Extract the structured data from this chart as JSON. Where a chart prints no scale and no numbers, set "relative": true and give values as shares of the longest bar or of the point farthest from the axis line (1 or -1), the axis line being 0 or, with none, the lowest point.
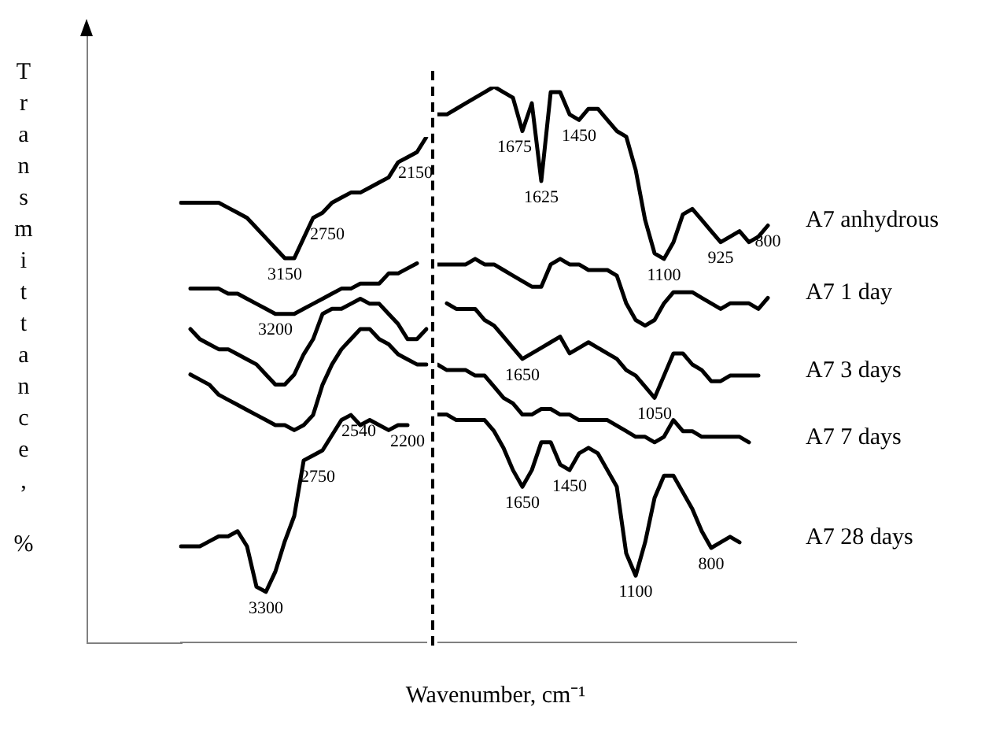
{
  "chart_data": [
    {
      "type": "line",
      "relative": true,
      "ylabel": "Transmittance, %",
      "tick_labels": false,
      "marker": "none",
      "categories": [
        null,
        null,
        null,
        null,
        null,
        null,
        null,
        null,
        null,
        null,
        null,
        null,
        null,
        null,
        null,
        null,
        null,
        null,
        null,
        null,
        null,
        null,
        null,
        null,
        null,
        null,
        null
      ],
      "series": [
        {
          "color": "#000000",
          "values": [
            0.87,
            0.87,
            0.87,
            0.87,
            0.87,
            0.86,
            0.85,
            0.84,
            0.82,
            0.8,
            0.78,
            0.76,
            0.76,
            0.8,
            0.84,
            0.85,
            0.87,
            0.88,
            0.89,
            0.89,
            0.9,
            0.91,
            0.92,
            0.95,
            0.96,
            0.97,
            1.0
          ]
        },
        {
          "color": "#000000",
          "values": [
            null,
            0.7,
            0.7,
            0.7,
            0.7,
            0.69,
            0.69,
            0.68,
            0.67,
            0.66,
            0.65,
            0.65,
            0.65,
            0.66,
            0.67,
            0.68,
            0.69,
            0.7,
            0.7,
            0.71,
            0.71,
            0.71,
            0.73,
            0.73,
            0.74,
            0.75,
            null
          ]
        },
        {
          "color": "#000000",
          "values": [
            null,
            0.62,
            0.6,
            0.59,
            0.58,
            0.58,
            0.57,
            0.56,
            0.55,
            0.53,
            0.51,
            0.51,
            0.53,
            0.57,
            0.6,
            0.65,
            0.66,
            0.66,
            0.67,
            0.68,
            0.67,
            0.67,
            0.65,
            0.63,
            0.6,
            0.6,
            0.62
          ]
        },
        {
          "color": "#000000",
          "values": [
            null,
            0.53,
            0.52,
            0.51,
            0.49,
            0.48,
            0.47,
            0.46,
            0.45,
            0.44,
            0.43,
            0.43,
            0.42,
            0.43,
            0.45,
            0.51,
            0.55,
            0.58,
            0.6,
            0.62,
            0.62,
            0.6,
            0.59,
            0.57,
            0.56,
            0.55,
            0.55
          ]
        },
        {
          "color": "#000000",
          "values": [
            0.19,
            0.19,
            0.19,
            0.2,
            0.21,
            0.21,
            0.22,
            0.19,
            0.11,
            0.1,
            0.14,
            0.2,
            0.25,
            0.36,
            0.37,
            0.38,
            0.41,
            0.44,
            0.45,
            0.43,
            0.44,
            0.43,
            0.42,
            0.43,
            0.43,
            null,
            null
          ]
        }
      ],
      "annotations": [
        {
          "text": "3300",
          "y": 0.1
        },
        {
          "text": "3200",
          "y": 0.65
        },
        {
          "text": "3150",
          "y": 0.76
        },
        {
          "text": "2750",
          "y": 0.36
        },
        {
          "text": "2750",
          "y": 0.84
        },
        {
          "text": "2540",
          "y": 0.45
        },
        {
          "text": "2150",
          "y": 0.96
        },
        {
          "text": "2200",
          "y": 0.43
        }
      ]
    },
    {
      "type": "line",
      "relative": true,
      "xlabel": "Wavenumber, cm⁻¹",
      "tick_labels": false,
      "marker": "none",
      "categories": [
        null,
        null,
        null,
        null,
        null,
        null,
        null,
        null,
        null,
        null,
        null,
        null,
        null,
        null,
        null,
        null,
        null,
        null,
        null,
        null,
        null,
        null,
        null,
        null,
        null,
        null,
        null,
        null,
        null,
        null,
        null,
        null,
        null,
        null,
        null,
        null,
        null,
        null,
        null
      ],
      "series": [
        {
          "name": "A7 anhydrous",
          "color": "#000000",
          "values": [
            0.95,
            0.95,
            0.96,
            0.97,
            0.98,
            0.99,
            1.0,
            0.99,
            0.98,
            0.92,
            0.97,
            0.83,
            0.99,
            0.99,
            0.95,
            0.94,
            0.96,
            0.96,
            0.94,
            0.92,
            0.91,
            0.85,
            0.76,
            0.7,
            0.69,
            0.72,
            0.77,
            0.78,
            0.76,
            0.74,
            0.72,
            0.73,
            0.74,
            0.72,
            0.73,
            0.75,
            null,
            null,
            null
          ]
        },
        {
          "name": "A7 1 day",
          "color": "#000000",
          "values": [
            0.68,
            0.68,
            0.68,
            0.68,
            0.69,
            0.68,
            0.68,
            0.67,
            0.66,
            0.65,
            0.64,
            0.64,
            0.68,
            0.69,
            0.68,
            0.68,
            0.67,
            0.67,
            0.67,
            0.66,
            0.61,
            0.58,
            0.57,
            0.58,
            0.61,
            0.63,
            0.63,
            0.63,
            0.62,
            0.61,
            0.6,
            0.61,
            0.61,
            0.61,
            0.6,
            0.62,
            null,
            null,
            null
          ]
        },
        {
          "name": "A7 3 days",
          "color": "#000000",
          "values": [
            null,
            0.61,
            0.6,
            0.6,
            0.6,
            0.58,
            0.57,
            0.55,
            0.53,
            0.51,
            0.52,
            0.53,
            0.54,
            0.55,
            0.52,
            0.53,
            0.54,
            0.53,
            0.52,
            0.51,
            0.49,
            0.48,
            0.46,
            0.44,
            0.48,
            0.52,
            0.52,
            0.5,
            0.49,
            0.47,
            0.47,
            0.48,
            0.48,
            0.48,
            0.48,
            null,
            null,
            null,
            null
          ]
        },
        {
          "name": "A7 7 days",
          "color": "#000000",
          "values": [
            0.5,
            0.49,
            0.49,
            0.49,
            0.48,
            0.48,
            0.46,
            0.44,
            0.43,
            0.41,
            0.41,
            0.42,
            0.42,
            0.41,
            0.41,
            0.4,
            0.4,
            0.4,
            0.4,
            0.39,
            0.38,
            0.37,
            0.37,
            0.36,
            0.37,
            0.4,
            0.38,
            0.38,
            0.37,
            0.37,
            0.37,
            0.37,
            0.37,
            0.36,
            null,
            null,
            null,
            null,
            null
          ]
        },
        {
          "name": "A7 28 days",
          "color": "#000000",
          "values": [
            0.41,
            0.41,
            0.4,
            0.4,
            0.4,
            0.4,
            0.38,
            0.35,
            0.31,
            0.28,
            0.31,
            0.36,
            0.36,
            0.32,
            0.31,
            0.34,
            0.35,
            0.34,
            0.31,
            0.28,
            0.16,
            0.12,
            0.18,
            0.26,
            0.3,
            0.3,
            0.27,
            0.24,
            0.2,
            0.17,
            0.18,
            0.19,
            0.18,
            null,
            null,
            null,
            null,
            null,
            null
          ]
        }
      ],
      "annotations": [
        {
          "text": "1675",
          "y": 0.92
        },
        {
          "text": "1650",
          "y": 0.51
        },
        {
          "text": "1650",
          "y": 0.28
        },
        {
          "text": "1625",
          "y": 0.83
        },
        {
          "text": "1450",
          "y": 0.31
        },
        {
          "text": "1450",
          "y": 0.94
        },
        {
          "text": "1100",
          "y": 0.12
        },
        {
          "text": "1050",
          "y": 0.44
        },
        {
          "text": "1100",
          "y": 0.69
        },
        {
          "text": "800",
          "y": 0.17
        },
        {
          "text": "925",
          "y": 0.72
        },
        {
          "text": "800",
          "y": 0.75
        }
      ]
    }
  ]
}
